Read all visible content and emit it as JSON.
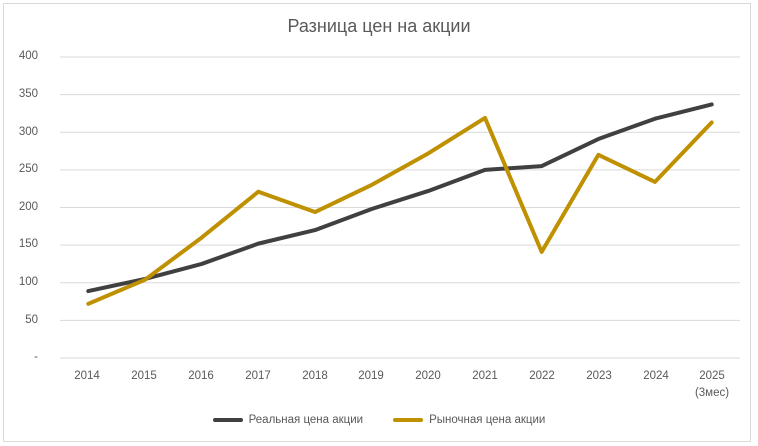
{
  "chart_data": {
    "type": "line",
    "title": "Разница цен на акции",
    "xlabel": "",
    "ylabel": "",
    "categories": [
      "2014",
      "2015",
      "2016",
      "2017",
      "2018",
      "2019",
      "2020",
      "2021",
      "2022",
      "2023",
      "2024",
      "2025 (3мес)"
    ],
    "series": [
      {
        "name": "Реальная цена акции",
        "color": "#404040",
        "values": [
          89,
          105,
          125,
          152,
          170,
          198,
          222,
          250,
          255,
          291,
          318,
          337
        ]
      },
      {
        "name": "Рыночная цена акции",
        "color": "#BF9000",
        "values": [
          72,
          104,
          160,
          221,
          194,
          230,
          272,
          319,
          141,
          270,
          234,
          313
        ]
      }
    ],
    "ylim": [
      0,
      400
    ],
    "yticks": [
      "-",
      "50",
      "100",
      "150",
      "200",
      "250",
      "300",
      "350",
      "400"
    ],
    "grid": true,
    "legend_position": "bottom"
  },
  "chart": {
    "title": "Разница цен на акции",
    "y_tick_labels": [
      "400",
      "350",
      "300",
      "250",
      "200",
      "150",
      "100",
      "50",
      "-"
    ],
    "x_tick_labels": [
      "2014",
      "2015",
      "2016",
      "2017",
      "2018",
      "2019",
      "2020",
      "2021",
      "2022",
      "2023",
      "2024",
      "2025"
    ],
    "x_tick_sublabel_last": "(3мес)",
    "legend": [
      {
        "label": "Реальная цена акции",
        "color": "#404040"
      },
      {
        "label": "Рыночная цена акции",
        "color": "#BF9000"
      }
    ]
  }
}
